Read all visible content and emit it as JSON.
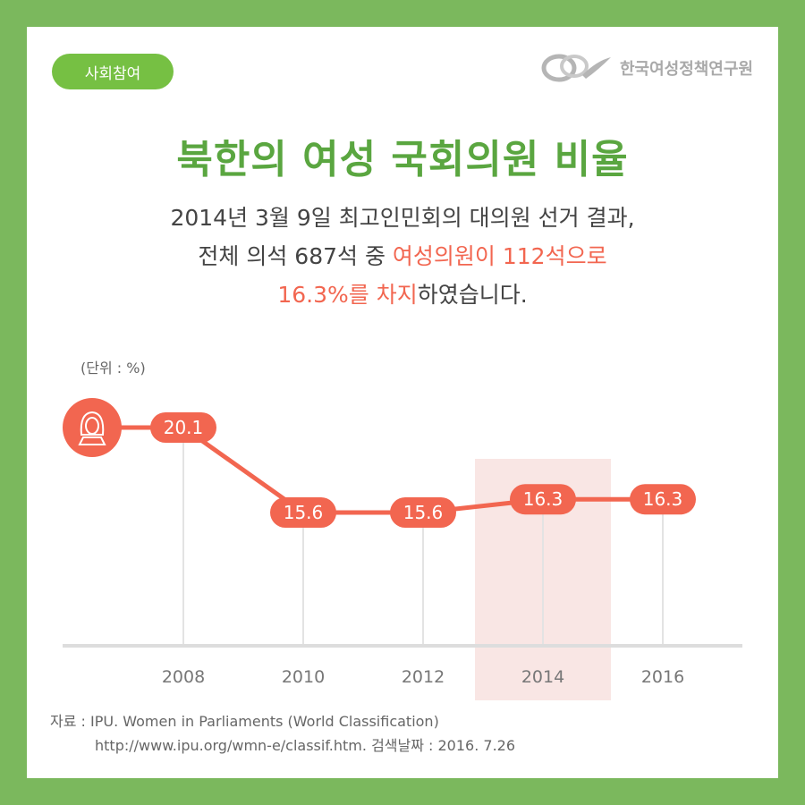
{
  "header": {
    "category_tag": "사회참여",
    "org_name": "한국여성정책연구원"
  },
  "title": "북한의 여성 국회의원 비율",
  "description": {
    "line1": "2014년 3월 9일 최고인민회의 대의원 선거 결과,",
    "line2_plain": "전체 의석 687석 중 ",
    "line2_highlight": "여성의원이 112석으로",
    "line3_highlight": "16.3%를 차지",
    "line3_plain": "하였습니다."
  },
  "unit_label": "(단위 : %)",
  "source": {
    "line1": "자료 : IPU. Women in Parliaments (World Classification)",
    "line2": "http://www.ipu.org/wmn-e/classif.htm.   검색날짜 : 2016. 7.26"
  },
  "colors": {
    "background": "#7bb85d",
    "title_green": "#5aa640",
    "tag_green": "#76c043",
    "accent_red": "#f26650",
    "highlight_band": "#f9e6e4",
    "axis_gray": "#dddddd"
  },
  "icons": {
    "series_marker": "woman-face-icon",
    "logo": "institute-logo-icon"
  },
  "chart_data": {
    "type": "line",
    "categories": [
      "2008",
      "2010",
      "2012",
      "2014",
      "2016"
    ],
    "series": [
      {
        "values": [
          20.1,
          15.6,
          15.6,
          16.3,
          16.3
        ]
      }
    ],
    "value_labels": [
      "20.1",
      "15.6",
      "15.6",
      "16.3",
      "16.3"
    ],
    "highlighted_category": "2014",
    "ylabel": "",
    "xlabel": "",
    "grid": false,
    "legend": "none"
  }
}
